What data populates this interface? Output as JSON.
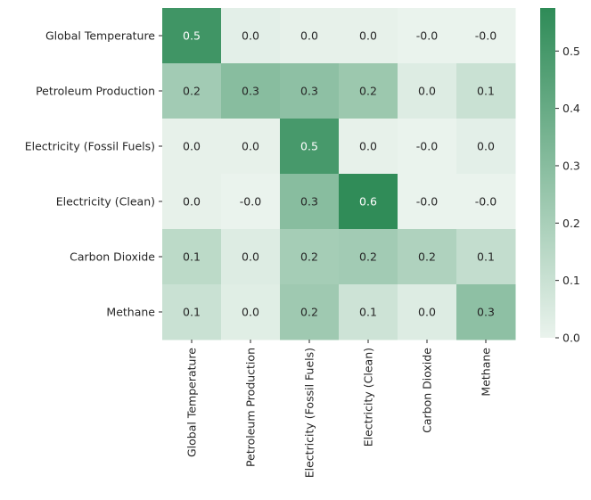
{
  "chart_data": {
    "type": "heatmap",
    "title": "",
    "xlabel": "",
    "ylabel": "",
    "rows": [
      "Global Temperature",
      "Petroleum Production",
      "Electricity (Fossil Fuels)",
      "Electricity (Clean)",
      "Carbon Dioxide",
      "Methane"
    ],
    "columns": [
      "Global Temperature",
      "Petroleum Production",
      "Electricity (Fossil Fuels)",
      "Electricity (Clean)",
      "Carbon Dioxide",
      "Methane"
    ],
    "values": [
      [
        0.52,
        0.02,
        0.01,
        0.01,
        0.0,
        0.0
      ],
      [
        0.22,
        0.3,
        0.28,
        0.24,
        0.04,
        0.1
      ],
      [
        0.01,
        0.01,
        0.5,
        0.01,
        0.0,
        0.02
      ],
      [
        0.01,
        0.0,
        0.3,
        0.57,
        0.0,
        0.0
      ],
      [
        0.14,
        0.04,
        0.21,
        0.22,
        0.18,
        0.12
      ],
      [
        0.1,
        0.03,
        0.23,
        0.09,
        0.04,
        0.28
      ]
    ],
    "labels": [
      [
        "0.5",
        "0.0",
        "0.0",
        "0.0",
        "-0.0",
        "-0.0"
      ],
      [
        "0.2",
        "0.3",
        "0.3",
        "0.2",
        "0.0",
        "0.1"
      ],
      [
        "0.0",
        "0.0",
        "0.5",
        "0.0",
        "-0.0",
        "0.0"
      ],
      [
        "0.0",
        "-0.0",
        "0.3",
        "0.6",
        "-0.0",
        "-0.0"
      ],
      [
        "0.1",
        "0.0",
        "0.2",
        "0.2",
        "0.2",
        "0.1"
      ],
      [
        "0.1",
        "0.0",
        "0.2",
        "0.1",
        "0.0",
        "0.3"
      ]
    ],
    "colorbar": {
      "min": 0.0,
      "max": 0.575,
      "ticks": [
        0.0,
        0.1,
        0.2,
        0.3,
        0.4,
        0.5
      ],
      "tick_labels": [
        "0.0",
        "0.1",
        "0.2",
        "0.3",
        "0.4",
        "0.5"
      ],
      "low_color": "#eaf3ed",
      "high_color": "#2e8b57"
    }
  }
}
